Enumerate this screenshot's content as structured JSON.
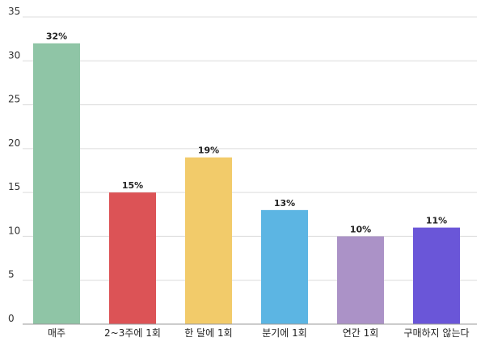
{
  "chart_data": {
    "type": "bar",
    "categories": [
      "매주",
      "2~3주에 1회",
      "한 달에 1회",
      "분기에 1회",
      "연간 1회",
      "구매하지 않는다"
    ],
    "values": [
      32,
      15,
      19,
      13,
      10,
      11
    ],
    "data_labels": [
      "32%",
      "15%",
      "19%",
      "13%",
      "10%",
      "11%"
    ],
    "colors": [
      "#8fc5a6",
      "#dc5356",
      "#f2cb6a",
      "#5cb5e3",
      "#ab92c7",
      "#6a56d8"
    ],
    "y_ticks": [
      "0",
      "5",
      "10",
      "15",
      "20",
      "25",
      "30",
      "35"
    ],
    "ylim": [
      0,
      35
    ],
    "grid": true,
    "title": "",
    "xlabel": "",
    "ylabel": ""
  }
}
